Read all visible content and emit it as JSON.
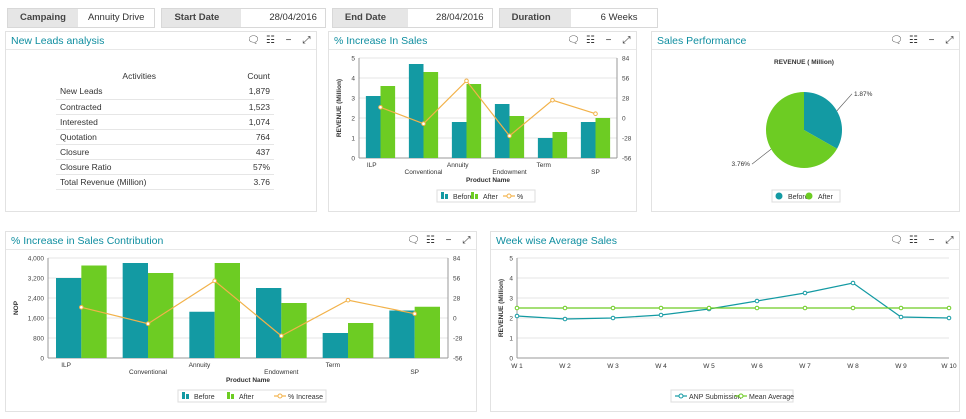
{
  "filters": {
    "campaign_label": "Campaing",
    "campaign_value": "Annuity Drive",
    "start_label": "Start Date",
    "start_value": "28/04/2016",
    "end_label": "End Date",
    "end_value": "28/04/2016",
    "duration_label": "Duration",
    "duration_value": "6 Weeks"
  },
  "panels": {
    "leads": "New Leads analysis",
    "increase": "% Increase In Sales",
    "performance": "Sales Performance",
    "contribution": "% Increase in Sales Contribution",
    "weekly": "Week wise Average Sales"
  },
  "tools": {
    "comment": "comment-icon",
    "grid": "grid-icon",
    "minimize": "minimize-icon",
    "expand": "expand-icon"
  },
  "leads_table": {
    "col_activity": "Activities",
    "col_count": "Count",
    "rows": [
      {
        "activity": "New Leads",
        "count": "1,879"
      },
      {
        "activity": "Contracted",
        "count": "1,523"
      },
      {
        "activity": "Interested",
        "count": "1,074"
      },
      {
        "activity": "Quotation",
        "count": "764"
      },
      {
        "activity": "Closure",
        "count": "437"
      },
      {
        "activity": "Closure Ratio",
        "count": "57%"
      },
      {
        "activity": "Total Revenue (Million)",
        "count": "3.76"
      }
    ]
  },
  "colors": {
    "before": "#139aa3",
    "after": "#6dcc23",
    "line": "#f2b24a",
    "title": "#0f8ea0"
  },
  "chart_data": [
    {
      "id": "increase",
      "type": "bar",
      "categories": [
        "ILP",
        "Conventional",
        "Annuity",
        "Endowment",
        "Term",
        "SP"
      ],
      "series": [
        {
          "name": "Before",
          "values": [
            3.1,
            4.7,
            1.8,
            2.7,
            1.0,
            1.8
          ]
        },
        {
          "name": "After",
          "values": [
            3.6,
            4.3,
            3.7,
            2.1,
            1.3,
            2.0
          ]
        },
        {
          "name": "%",
          "type": "line",
          "axis": "right",
          "values": [
            15,
            -8,
            52,
            -25,
            25,
            6
          ]
        }
      ],
      "xlabel": "Product Name",
      "ylabel": "REVENUE (Million)",
      "ylim": [
        0,
        5
      ],
      "yticks": [
        "0",
        "1",
        "2",
        "3",
        "4",
        "5"
      ],
      "y2lim": [
        -56,
        84
      ],
      "y2ticks": [
        "-56",
        "-28",
        "0",
        "28",
        "56",
        "84"
      ],
      "legend": [
        "Before",
        "After",
        "%"
      ]
    },
    {
      "id": "performance",
      "type": "pie",
      "title": "REVENUE ( Million)",
      "slices": [
        {
          "name": "Before",
          "value": 1.87,
          "label": "1.87%"
        },
        {
          "name": "After",
          "value": 3.76,
          "label": "3.76%"
        }
      ],
      "legend": [
        "Before",
        "After"
      ]
    },
    {
      "id": "contribution",
      "type": "bar",
      "categories": [
        "ILP",
        "Conventional",
        "Annuity",
        "Endowment",
        "Term",
        "SP"
      ],
      "series": [
        {
          "name": "Before",
          "values": [
            3200,
            3800,
            1850,
            2800,
            1000,
            1900
          ]
        },
        {
          "name": "After",
          "values": [
            3700,
            3400,
            3800,
            2200,
            1400,
            2050
          ]
        },
        {
          "name": "% Increase",
          "type": "line",
          "axis": "right",
          "values": [
            15,
            -8,
            52,
            -25,
            25,
            6
          ]
        }
      ],
      "xlabel": "Product Name",
      "ylabel": "NOP",
      "ylim": [
        0,
        4000
      ],
      "yticks": [
        "0",
        "800",
        "1,600",
        "2,400",
        "3,200",
        "4,000"
      ],
      "y2lim": [
        -56,
        84
      ],
      "y2ticks": [
        "-56",
        "-28",
        "0",
        "28",
        "56",
        "84"
      ],
      "legend": [
        "Before",
        "After",
        "% Increase"
      ]
    },
    {
      "id": "weekly",
      "type": "line",
      "categories": [
        "W 1",
        "W 2",
        "W 3",
        "W 4",
        "W 5",
        "W 6",
        "W 7",
        "W 8",
        "W 9",
        "W 10"
      ],
      "series": [
        {
          "name": "ANP Submission",
          "values": [
            2.1,
            1.95,
            2.0,
            2.15,
            2.45,
            2.85,
            3.25,
            3.75,
            2.05,
            2.0
          ]
        },
        {
          "name": "Mean Average",
          "values": [
            2.5,
            2.5,
            2.5,
            2.5,
            2.5,
            2.5,
            2.5,
            2.5,
            2.5,
            2.5
          ]
        }
      ],
      "ylabel": "REVENUE (Million)",
      "ylim": [
        0,
        5
      ],
      "yticks": [
        "0",
        "1",
        "2",
        "3",
        "4",
        "5"
      ],
      "legend": [
        "ANP Submission",
        "Mean Average"
      ]
    }
  ]
}
